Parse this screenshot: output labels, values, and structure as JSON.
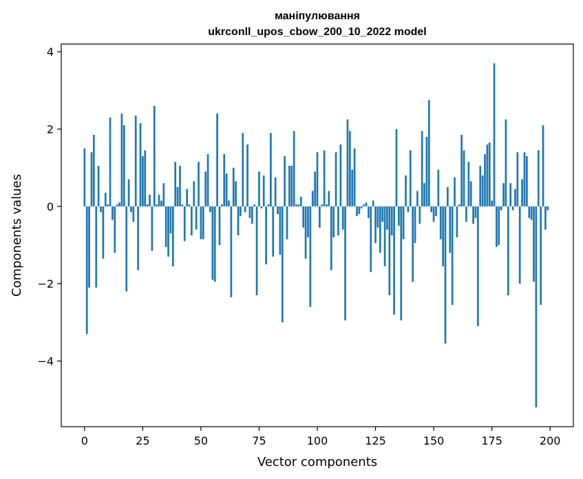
{
  "chart_data": {
    "type": "bar",
    "title": "маніпулювання",
    "subtitle": "ukrconll_upos_cbow_200_10_2022 model",
    "xlabel": "Vector components",
    "ylabel": "Components values",
    "xlim": [
      -10,
      210
    ],
    "ylim": [
      -5.7,
      4.2
    ],
    "xticks": [
      0,
      25,
      50,
      75,
      100,
      125,
      150,
      175,
      200
    ],
    "yticks": [
      -4,
      -2,
      0,
      2,
      4
    ],
    "xtick_labels": [
      "0",
      "25",
      "50",
      "75",
      "100",
      "125",
      "150",
      "175",
      "200"
    ],
    "ytick_labels": [
      "−4",
      "−2",
      "0",
      "2",
      "4"
    ],
    "grid": false,
    "bar_color": "#1f77b4",
    "x": [
      0,
      1,
      2,
      3,
      4,
      5,
      6,
      7,
      8,
      9,
      10,
      11,
      12,
      13,
      14,
      15,
      16,
      17,
      18,
      19,
      20,
      21,
      22,
      23,
      24,
      25,
      26,
      27,
      28,
      29,
      30,
      31,
      32,
      33,
      34,
      35,
      36,
      37,
      38,
      39,
      40,
      41,
      42,
      43,
      44,
      45,
      46,
      47,
      48,
      49,
      50,
      51,
      52,
      53,
      54,
      55,
      56,
      57,
      58,
      59,
      60,
      61,
      62,
      63,
      64,
      65,
      66,
      67,
      68,
      69,
      70,
      71,
      72,
      73,
      74,
      75,
      76,
      77,
      78,
      79,
      80,
      81,
      82,
      83,
      84,
      85,
      86,
      87,
      88,
      89,
      90,
      91,
      92,
      93,
      94,
      95,
      96,
      97,
      98,
      99,
      100,
      101,
      102,
      103,
      104,
      105,
      106,
      107,
      108,
      109,
      110,
      111,
      112,
      113,
      114,
      115,
      116,
      117,
      118,
      119,
      120,
      121,
      122,
      123,
      124,
      125,
      126,
      127,
      128,
      129,
      130,
      131,
      132,
      133,
      134,
      135,
      136,
      137,
      138,
      139,
      140,
      141,
      142,
      143,
      144,
      145,
      146,
      147,
      148,
      149,
      150,
      151,
      152,
      153,
      154,
      155,
      156,
      157,
      158,
      159,
      160,
      161,
      162,
      163,
      164,
      165,
      166,
      167,
      168,
      169,
      170,
      171,
      172,
      173,
      174,
      175,
      176,
      177,
      178,
      179,
      180,
      181,
      182,
      183,
      184,
      185,
      186,
      187,
      188,
      189,
      190,
      191,
      192,
      193,
      194,
      195,
      196,
      197,
      198,
      199
    ],
    "values": [
      1.5,
      -3.3,
      -2.1,
      1.4,
      1.85,
      -2.1,
      1.05,
      -0.15,
      -1.35,
      0.35,
      0.05,
      2.3,
      -0.35,
      -1.2,
      0.05,
      0.1,
      2.4,
      2.1,
      -2.2,
      0.7,
      -0.15,
      -0.4,
      2.35,
      -1.65,
      2.15,
      1.3,
      1.45,
      0.05,
      0.3,
      -1.15,
      2.6,
      0.05,
      0.3,
      0.15,
      0.6,
      -1.05,
      -1.3,
      -0.7,
      -1.55,
      1.15,
      0.5,
      1.05,
      0.05,
      -0.9,
      0.45,
      0.05,
      -0.75,
      0.65,
      -0.6,
      1.15,
      -0.85,
      -0.85,
      0.9,
      1.35,
      -0.15,
      -1.9,
      -1.95,
      2.4,
      -1.0,
      0.05,
      1.35,
      0.85,
      0.15,
      -2.35,
      1.0,
      0.65,
      -0.75,
      -0.25,
      1.9,
      -0.15,
      1.6,
      -0.3,
      -0.45,
      0.05,
      -2.3,
      0.9,
      -0.05,
      0.8,
      -1.5,
      0.05,
      1.9,
      -1.3,
      0.75,
      -0.2,
      -1.25,
      -3.0,
      1.3,
      -0.85,
      1.05,
      1.05,
      1.95,
      0.05,
      0.05,
      0.25,
      -0.55,
      -1.35,
      -0.8,
      -2.6,
      0.4,
      0.9,
      1.4,
      -0.55,
      0.05,
      1.45,
      0.05,
      0.4,
      -1.65,
      -0.8,
      1.4,
      -0.75,
      1.6,
      -0.6,
      -2.95,
      2.25,
      1.95,
      0.95,
      1.5,
      -0.25,
      -0.2,
      -0.05,
      0.05,
      0.1,
      -0.3,
      -1.7,
      0.15,
      -0.95,
      -0.55,
      -1.2,
      -0.4,
      -1.55,
      -0.6,
      -2.3,
      -0.75,
      -2.8,
      2.0,
      -0.5,
      -2.95,
      -0.85,
      0.8,
      -0.15,
      1.45,
      -1.95,
      -0.95,
      0.4,
      -0.45,
      1.95,
      0.6,
      1.8,
      2.75,
      -0.15,
      -0.4,
      -0.25,
      0.95,
      -0.85,
      -1.55,
      -3.55,
      0.5,
      -1.2,
      -2.55,
      0.75,
      -0.8,
      0.05,
      1.85,
      1.45,
      -0.4,
      1.15,
      0.65,
      -0.45,
      -0.3,
      -3.1,
      1.05,
      0.8,
      1.35,
      1.6,
      1.65,
      0.15,
      3.7,
      -1.05,
      -1.0,
      -0.1,
      0.6,
      2.25,
      -2.3,
      0.6,
      -0.1,
      0.45,
      1.4,
      -2.0,
      0.7,
      1.4,
      1.3,
      -0.3,
      -0.35,
      -1.95,
      -5.2,
      1.45,
      -2.55,
      2.1,
      -0.6,
      -0.1
    ]
  }
}
